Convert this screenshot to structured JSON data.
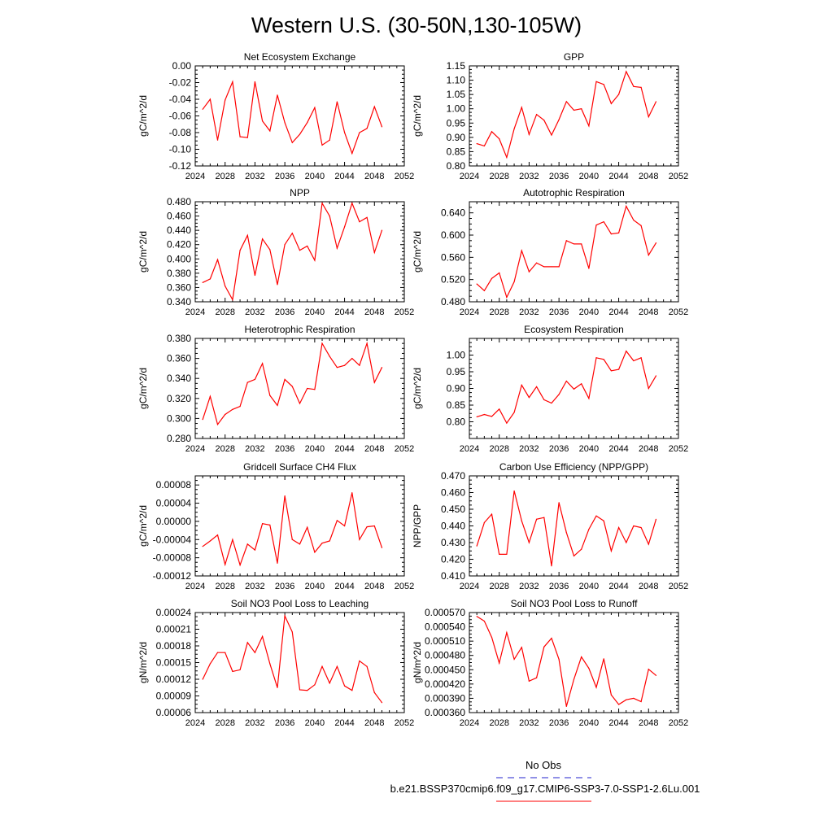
{
  "figure": {
    "title": "Western U.S. (30-50N,130-105W)",
    "legend": {
      "entries": [
        {
          "label": "No Obs",
          "color": "#2222cc",
          "dash": true
        },
        {
          "label": "b.e21.BSSP370cmip6.f09_g17.CMIP6-SSP3-7.0-SSP1-2.6Lu.001",
          "color": "#ff0000",
          "dash": false
        }
      ]
    }
  },
  "chart_data": [
    {
      "type": "line",
      "title": "Net Ecosystem Exchange",
      "ylabel": "gC/m^2/d",
      "xlim": [
        2024,
        2052
      ],
      "xticks": [
        "2024",
        "2028",
        "2032",
        "2036",
        "2040",
        "2044",
        "2048",
        "2052"
      ],
      "ylim": [
        -0.12,
        0.0
      ],
      "yticks": [
        "0.00",
        "-0.02",
        "-0.04",
        "-0.06",
        "-0.08",
        "-0.10",
        "-0.12"
      ],
      "color": "#ff0000",
      "x": [
        2025,
        2026,
        2027,
        2028,
        2029,
        2030,
        2031,
        2032,
        2033,
        2034,
        2035,
        2036,
        2037,
        2038,
        2039,
        2040,
        2041,
        2042,
        2043,
        2044,
        2045,
        2046,
        2047,
        2048,
        2049
      ],
      "y": [
        -0.052,
        -0.04,
        -0.089,
        -0.041,
        -0.019,
        -0.085,
        -0.086,
        -0.019,
        -0.066,
        -0.078,
        -0.035,
        -0.068,
        -0.092,
        -0.082,
        -0.068,
        -0.05,
        -0.095,
        -0.089,
        -0.043,
        -0.08,
        -0.105,
        -0.08,
        -0.075,
        -0.049,
        -0.073
      ]
    },
    {
      "type": "line",
      "title": "GPP",
      "ylabel": "gC/m^2/d",
      "xlim": [
        2024,
        2052
      ],
      "xticks": [
        "2024",
        "2028",
        "2032",
        "2036",
        "2040",
        "2044",
        "2048",
        "2052"
      ],
      "ylim": [
        0.8,
        1.15
      ],
      "yticks": [
        "0.80",
        "0.85",
        "0.90",
        "0.95",
        "1.00",
        "1.05",
        "1.10",
        "1.15"
      ],
      "color": "#ff0000",
      "x": [
        2025,
        2026,
        2027,
        2028,
        2029,
        2030,
        2031,
        2032,
        2033,
        2034,
        2035,
        2036,
        2037,
        2038,
        2039,
        2040,
        2041,
        2042,
        2043,
        2044,
        2045,
        2046,
        2047,
        2048,
        2049
      ],
      "y": [
        0.878,
        0.87,
        0.92,
        0.895,
        0.83,
        0.93,
        1.005,
        0.91,
        0.98,
        0.96,
        0.908,
        0.962,
        1.025,
        0.995,
        1.0,
        0.94,
        1.095,
        1.085,
        1.018,
        1.05,
        1.13,
        1.078,
        1.075,
        0.972,
        1.025
      ]
    },
    {
      "type": "line",
      "title": "NPP",
      "ylabel": "gC/m^2/d",
      "xlim": [
        2024,
        2052
      ],
      "xticks": [
        "2024",
        "2028",
        "2032",
        "2036",
        "2040",
        "2044",
        "2048",
        "2052"
      ],
      "ylim": [
        0.34,
        0.48
      ],
      "yticks": [
        "0.340",
        "0.360",
        "0.380",
        "0.400",
        "0.420",
        "0.440",
        "0.460",
        "0.480"
      ],
      "color": "#ff0000",
      "x": [
        2025,
        2026,
        2027,
        2028,
        2029,
        2030,
        2031,
        2032,
        2033,
        2034,
        2035,
        2036,
        2037,
        2038,
        2039,
        2040,
        2041,
        2042,
        2043,
        2044,
        2045,
        2046,
        2047,
        2048,
        2049
      ],
      "y": [
        0.367,
        0.372,
        0.399,
        0.362,
        0.343,
        0.412,
        0.433,
        0.377,
        0.428,
        0.413,
        0.364,
        0.42,
        0.436,
        0.412,
        0.418,
        0.398,
        0.478,
        0.46,
        0.415,
        0.445,
        0.478,
        0.452,
        0.458,
        0.409,
        0.44
      ]
    },
    {
      "type": "line",
      "title": "Autotrophic Respiration",
      "ylabel": "gC/m^2/d",
      "xlim": [
        2024,
        2052
      ],
      "xticks": [
        "2024",
        "2028",
        "2032",
        "2036",
        "2040",
        "2044",
        "2048",
        "2052"
      ],
      "ylim": [
        0.48,
        0.66
      ],
      "yticks": [
        "0.480",
        "0.520",
        "0.560",
        "0.600",
        "0.640"
      ],
      "color": "#ff0000",
      "x": [
        2025,
        2026,
        2027,
        2028,
        2029,
        2030,
        2031,
        2032,
        2033,
        2034,
        2035,
        2036,
        2037,
        2038,
        2039,
        2040,
        2041,
        2042,
        2043,
        2044,
        2045,
        2046,
        2047,
        2048,
        2049
      ],
      "y": [
        0.512,
        0.5,
        0.522,
        0.532,
        0.488,
        0.516,
        0.572,
        0.534,
        0.55,
        0.543,
        0.543,
        0.543,
        0.59,
        0.584,
        0.584,
        0.54,
        0.618,
        0.624,
        0.602,
        0.604,
        0.652,
        0.627,
        0.617,
        0.564,
        0.586
      ]
    },
    {
      "type": "line",
      "title": "Heterotrophic Respiration",
      "ylabel": "gC/m^2/d",
      "xlim": [
        2024,
        2052
      ],
      "xticks": [
        "2024",
        "2028",
        "2032",
        "2036",
        "2040",
        "2044",
        "2048",
        "2052"
      ],
      "ylim": [
        0.28,
        0.38
      ],
      "yticks": [
        "0.280",
        "0.300",
        "0.320",
        "0.340",
        "0.360",
        "0.380"
      ],
      "color": "#ff0000",
      "x": [
        2025,
        2026,
        2027,
        2028,
        2029,
        2030,
        2031,
        2032,
        2033,
        2034,
        2035,
        2036,
        2037,
        2038,
        2039,
        2040,
        2041,
        2042,
        2043,
        2044,
        2045,
        2046,
        2047,
        2048,
        2049
      ],
      "y": [
        0.299,
        0.322,
        0.294,
        0.304,
        0.309,
        0.312,
        0.336,
        0.339,
        0.355,
        0.323,
        0.313,
        0.339,
        0.332,
        0.315,
        0.33,
        0.329,
        0.375,
        0.362,
        0.351,
        0.353,
        0.36,
        0.353,
        0.375,
        0.336,
        0.351
      ]
    },
    {
      "type": "line",
      "title": "Ecosystem Respiration",
      "ylabel": "gC/m^2/d",
      "xlim": [
        2024,
        2052
      ],
      "xticks": [
        "2024",
        "2028",
        "2032",
        "2036",
        "2040",
        "2044",
        "2048",
        "2052"
      ],
      "ylim": [
        0.75,
        1.05
      ],
      "yticks": [
        "0.80",
        "0.85",
        "0.90",
        "0.95",
        "1.00"
      ],
      "color": "#ff0000",
      "x": [
        2025,
        2026,
        2027,
        2028,
        2029,
        2030,
        2031,
        2032,
        2033,
        2034,
        2035,
        2036,
        2037,
        2038,
        2039,
        2040,
        2041,
        2042,
        2043,
        2044,
        2045,
        2046,
        2047,
        2048,
        2049
      ],
      "y": [
        0.815,
        0.822,
        0.816,
        0.838,
        0.796,
        0.828,
        0.91,
        0.873,
        0.905,
        0.866,
        0.856,
        0.882,
        0.922,
        0.898,
        0.914,
        0.87,
        0.992,
        0.987,
        0.953,
        0.957,
        1.012,
        0.983,
        0.992,
        0.9,
        0.938
      ]
    },
    {
      "type": "line",
      "title": "Gridcell Surface CH4 Flux",
      "ylabel": "gC/m^2/d",
      "xlim": [
        2024,
        2052
      ],
      "xticks": [
        "2024",
        "2028",
        "2032",
        "2036",
        "2040",
        "2044",
        "2048",
        "2052"
      ],
      "ylim": [
        -0.00012,
        0.0001
      ],
      "yticks": [
        "-0.00012",
        "-0.00008",
        "-0.00004",
        "0.00000",
        "0.00004",
        "0.00008"
      ],
      "color": "#ff0000",
      "x": [
        2025,
        2026,
        2027,
        2028,
        2029,
        2030,
        2031,
        2032,
        2033,
        2034,
        2035,
        2036,
        2037,
        2038,
        2039,
        2040,
        2041,
        2042,
        2043,
        2044,
        2045,
        2046,
        2047,
        2048,
        2049
      ],
      "y": [
        -5.5e-05,
        -4.3e-05,
        -3e-05,
        -9.5e-05,
        -4e-05,
        -9.6e-05,
        -5e-05,
        -6.3e-05,
        -5e-06,
        -8e-06,
        -9.2e-05,
        5.6e-05,
        -4e-05,
        -5e-05,
        -1.3e-05,
        -6.8e-05,
        -4.8e-05,
        -4.3e-05,
        2e-06,
        -1e-05,
        6.3e-05,
        -4e-05,
        -1.2e-05,
        -1e-05,
        -5.8e-05
      ]
    },
    {
      "type": "line",
      "title": "Carbon Use Efficiency (NPP/GPP)",
      "ylabel": "NPP/GPP",
      "xlim": [
        2024,
        2052
      ],
      "xticks": [
        "2024",
        "2028",
        "2032",
        "2036",
        "2040",
        "2044",
        "2048",
        "2052"
      ],
      "ylim": [
        0.41,
        0.47
      ],
      "yticks": [
        "0.410",
        "0.420",
        "0.430",
        "0.440",
        "0.450",
        "0.460",
        "0.470"
      ],
      "color": "#ff0000",
      "x": [
        2025,
        2026,
        2027,
        2028,
        2029,
        2030,
        2031,
        2032,
        2033,
        2034,
        2035,
        2036,
        2037,
        2038,
        2039,
        2040,
        2041,
        2042,
        2043,
        2044,
        2045,
        2046,
        2047,
        2048,
        2049
      ],
      "y": [
        0.428,
        0.442,
        0.447,
        0.423,
        0.423,
        0.461,
        0.443,
        0.43,
        0.444,
        0.445,
        0.416,
        0.454,
        0.436,
        0.422,
        0.426,
        0.438,
        0.446,
        0.443,
        0.425,
        0.439,
        0.43,
        0.44,
        0.439,
        0.429,
        0.444
      ]
    },
    {
      "type": "line",
      "title": "Soil NO3 Pool Loss to Leaching",
      "ylabel": "gN/m^2/d",
      "xlim": [
        2024,
        2052
      ],
      "xticks": [
        "2024",
        "2028",
        "2032",
        "2036",
        "2040",
        "2044",
        "2048",
        "2052"
      ],
      "ylim": [
        6e-05,
        0.00024
      ],
      "yticks": [
        "0.00006",
        "0.00009",
        "0.00012",
        "0.00015",
        "0.00018",
        "0.00021",
        "0.00024"
      ],
      "color": "#ff0000",
      "x": [
        2025,
        2026,
        2027,
        2028,
        2029,
        2030,
        2031,
        2032,
        2033,
        2034,
        2035,
        2036,
        2037,
        2038,
        2039,
        2040,
        2041,
        2042,
        2043,
        2044,
        2045,
        2046,
        2047,
        2048,
        2049
      ],
      "y": [
        0.00012,
        0.000148,
        0.000168,
        0.000168,
        0.000134,
        0.000137,
        0.000186,
        0.000168,
        0.000197,
        0.000148,
        0.000105,
        0.000234,
        0.000205,
        0.000101,
        0.0001,
        0.00011,
        0.000143,
        0.000113,
        0.000143,
        0.000108,
        0.0001,
        0.000153,
        0.000143,
        9.6e-05,
        7.8e-05
      ]
    },
    {
      "type": "line",
      "title": "Soil NO3 Pool Loss to Runoff",
      "ylabel": "gN/m^2/d",
      "xlim": [
        2024,
        2052
      ],
      "xticks": [
        "2024",
        "2028",
        "2032",
        "2036",
        "2040",
        "2044",
        "2048",
        "2052"
      ],
      "ylim": [
        0.00036,
        0.00057
      ],
      "yticks": [
        "0.000360",
        "0.000390",
        "0.000420",
        "0.000450",
        "0.000480",
        "0.000510",
        "0.000540",
        "0.000570"
      ],
      "color": "#ff0000",
      "x": [
        2025,
        2026,
        2027,
        2028,
        2029,
        2030,
        2031,
        2032,
        2033,
        2034,
        2035,
        2036,
        2037,
        2038,
        2039,
        2040,
        2041,
        2042,
        2043,
        2044,
        2045,
        2046,
        2047,
        2048,
        2049
      ],
      "y": [
        0.000562,
        0.000552,
        0.000518,
        0.000464,
        0.000528,
        0.000472,
        0.000497,
        0.000426,
        0.000433,
        0.000498,
        0.000516,
        0.000472,
        0.000373,
        0.00043,
        0.000477,
        0.000453,
        0.000413,
        0.000473,
        0.000397,
        0.000377,
        0.000387,
        0.00039,
        0.000383,
        0.000451,
        0.000438
      ]
    }
  ]
}
